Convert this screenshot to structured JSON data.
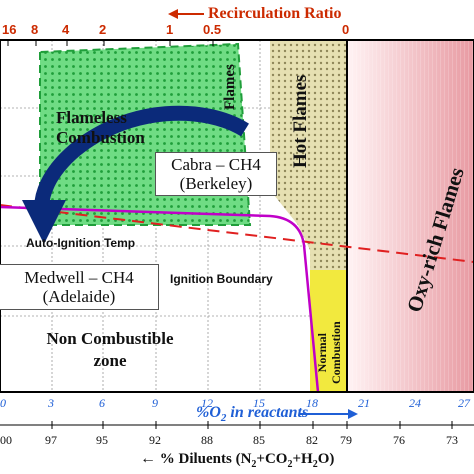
{
  "top_axis": {
    "title": "Recirculation Ratio",
    "arrow": "←",
    "ticks": [
      "16",
      "8",
      "4",
      "2",
      "1",
      "0.5",
      "0"
    ]
  },
  "o2_axis": {
    "title": "%O",
    "title_sub": "2",
    "title_rest": " in reactants",
    "arrow": "→",
    "ticks": [
      "0",
      "3",
      "6",
      "9",
      "12",
      "15",
      "18",
      "21",
      "24",
      "27"
    ]
  },
  "diluent_axis": {
    "arrow": "←",
    "title": "% Diluents (N",
    "sub1": "2",
    "mid1": "+CO",
    "sub2": "2",
    "mid2": "+H",
    "sub3": "2",
    "end": "O)",
    "ticks": [
      "00",
      "97",
      "95",
      "92",
      "88",
      "85",
      "82",
      "79",
      "76",
      "73"
    ]
  },
  "regions": {
    "flameless_combustion": "Flameless Combustion",
    "hot_flames": "Hot Flames",
    "oxy_rich_flames": "Oxy-rich Flames",
    "flames": "Flames",
    "normal_combustion_1": "Normal",
    "normal_combustion_2": "Combustion",
    "non_combustible_1": "Non Combustible",
    "non_combustible_2": "zone"
  },
  "curves": {
    "auto_ignition": "Auto-Ignition Temp",
    "ignition_boundary": "Ignition Boundary"
  },
  "cases": {
    "cabra_1": "Cabra – CH4",
    "cabra_2": "(Berkeley)",
    "medwell_1": "Medwell – CH4",
    "medwell_2": "(Adelaide)"
  },
  "colors": {
    "recirculation_red": "#cc2a00",
    "o2_blue": "#1f5fd6",
    "ignition_boundary": "#c000c8",
    "autoignition_line": "#e02020",
    "flameless_green": "#27c24a",
    "hot_flames_khaki": "#c8be7a",
    "normal_yellow": "#f2e93e",
    "arrow_navy": "#0b2a7a"
  }
}
